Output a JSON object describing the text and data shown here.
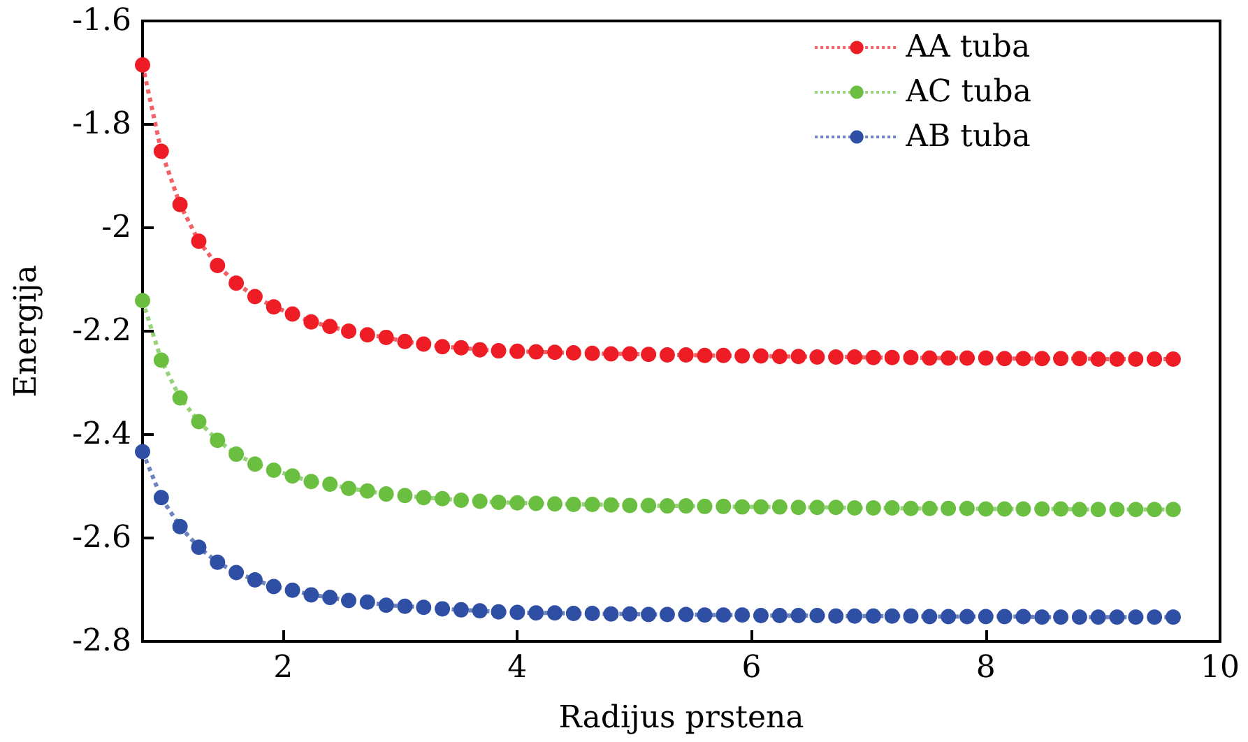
{
  "chart_data": {
    "type": "line",
    "xlabel": "Radijus prstena",
    "ylabel": "Energija",
    "x": [
      0.8,
      0.96,
      1.12,
      1.28,
      1.44,
      1.6,
      1.76,
      1.92,
      2.08,
      2.24,
      2.4,
      2.56,
      2.72,
      2.88,
      3.04,
      3.2,
      3.36,
      3.52,
      3.68,
      3.84,
      4,
      4.16,
      4.32,
      4.48,
      4.64,
      4.8,
      4.96,
      5.12,
      5.28,
      5.44,
      5.6,
      5.76,
      5.92,
      6.08,
      6.24,
      6.4,
      6.56,
      6.72,
      6.88,
      7.04,
      7.2,
      7.36,
      7.52,
      7.68,
      7.84,
      8,
      8.16,
      8.32,
      8.48,
      8.64,
      8.8,
      8.96,
      9.12,
      9.28,
      9.44,
      9.6
    ],
    "series": [
      {
        "name": "AA tuba",
        "color": "#ee1c24",
        "values": [
          -1.685,
          -1.852,
          -1.955,
          -2.026,
          -2.073,
          -2.107,
          -2.133,
          -2.153,
          -2.167,
          -2.182,
          -2.191,
          -2.2,
          -2.207,
          -2.212,
          -2.22,
          -2.225,
          -2.23,
          -2.232,
          -2.236,
          -2.238,
          -2.239,
          -2.24,
          -2.241,
          -2.242,
          -2.243,
          -2.244,
          -2.244,
          -2.245,
          -2.246,
          -2.246,
          -2.247,
          -2.247,
          -2.248,
          -2.248,
          -2.249,
          -2.249,
          -2.25,
          -2.25,
          -2.25,
          -2.251,
          -2.251,
          -2.251,
          -2.252,
          -2.252,
          -2.252,
          -2.252,
          -2.253,
          -2.253,
          -2.253,
          -2.253,
          -2.253,
          -2.254,
          -2.254,
          -2.254,
          -2.254,
          -2.254
        ]
      },
      {
        "name": "AC tuba",
        "color": "#6abf40",
        "values": [
          -2.141,
          -2.256,
          -2.329,
          -2.375,
          -2.411,
          -2.438,
          -2.457,
          -2.469,
          -2.48,
          -2.491,
          -2.496,
          -2.504,
          -2.509,
          -2.515,
          -2.518,
          -2.522,
          -2.524,
          -2.527,
          -2.529,
          -2.531,
          -2.532,
          -2.533,
          -2.534,
          -2.535,
          -2.535,
          -2.536,
          -2.537,
          -2.537,
          -2.538,
          -2.538,
          -2.539,
          -2.539,
          -2.54,
          -2.54,
          -2.54,
          -2.541,
          -2.541,
          -2.541,
          -2.542,
          -2.542,
          -2.542,
          -2.543,
          -2.543,
          -2.543,
          -2.543,
          -2.544,
          -2.544,
          -2.544,
          -2.544,
          -2.544,
          -2.545,
          -2.545,
          -2.545,
          -2.545,
          -2.545,
          -2.545
        ]
      },
      {
        "name": "AB tuba",
        "color": "#2e4fa3",
        "values": [
          -2.433,
          -2.522,
          -2.578,
          -2.618,
          -2.647,
          -2.667,
          -2.681,
          -2.694,
          -2.701,
          -2.71,
          -2.715,
          -2.721,
          -2.724,
          -2.73,
          -2.732,
          -2.734,
          -2.737,
          -2.739,
          -2.741,
          -2.743,
          -2.744,
          -2.745,
          -2.745,
          -2.746,
          -2.746,
          -2.747,
          -2.747,
          -2.748,
          -2.748,
          -2.748,
          -2.749,
          -2.749,
          -2.749,
          -2.75,
          -2.75,
          -2.75,
          -2.75,
          -2.751,
          -2.751,
          -2.751,
          -2.751,
          -2.751,
          -2.752,
          -2.752,
          -2.752,
          -2.752,
          -2.752,
          -2.752,
          -2.753,
          -2.753,
          -2.753,
          -2.753,
          -2.753,
          -2.753,
          -2.753,
          -2.753
        ]
      }
    ],
    "xlim": [
      0.8,
      10
    ],
    "xticks": [
      2,
      4,
      6,
      8,
      10
    ],
    "ylim": [
      -2.8,
      -1.6
    ],
    "yticks": [
      -2.8,
      -2.6,
      -2.4,
      -2.2,
      -2,
      -1.8,
      -1.6
    ],
    "grid": false,
    "legend": "top right",
    "marker": "circle",
    "line_style": "dotted"
  }
}
